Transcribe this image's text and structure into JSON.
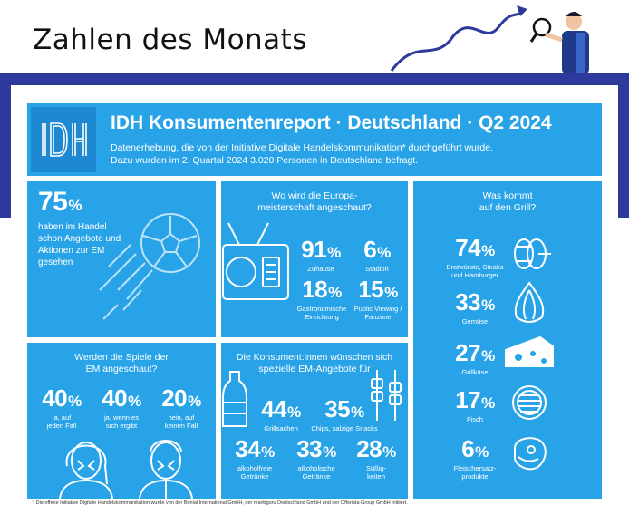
{
  "page_title": "Zahlen des Monats",
  "header": {
    "logo_text": "IDH",
    "title": "IDH Konsumentenreport · Deutschland · Q2 2024",
    "subtitle_line1": "Datenerhebung, die von der Initiative Digitale Handelskommunikation* durchgeführt wurde.",
    "subtitle_line2": "Dazu wurden im 2. Quartal 2024 3.020 Personen in Deutschland befragt."
  },
  "card_offers": {
    "value": "75",
    "pct": "%",
    "text": "haben im Handel schon Angebote und Aktionen zur EM gesehen"
  },
  "card_where": {
    "title": "Wo wird die Europa-meisterschaft angeschaut?",
    "title_line1": "Wo wird die Europa-",
    "title_line2": "meisterschaft angeschaut?",
    "stats": [
      {
        "value": "91",
        "pct": "%",
        "label": "Zuhause"
      },
      {
        "value": "6",
        "pct": "%",
        "label": "Stadion"
      },
      {
        "value": "18",
        "pct": "%",
        "label_line1": "Gastronomische",
        "label_line2": "Einrichtung"
      },
      {
        "value": "15",
        "pct": "%",
        "label_line1": "Public Viewing /",
        "label_line2": "Fanzone"
      }
    ]
  },
  "card_grill": {
    "title_line1": "Was kommt",
    "title_line2": "auf den Grill?",
    "stats": [
      {
        "value": "74",
        "pct": "%",
        "label_line1": "Bratwürste, Steaks",
        "label_line2": "und Hamburger",
        "icon": "sausage-icon"
      },
      {
        "value": "33",
        "pct": "%",
        "label_line1": "Gemüse",
        "label_line2": "",
        "icon": "onion-icon"
      },
      {
        "value": "27",
        "pct": "%",
        "label_line1": "Grillkäse",
        "label_line2": "",
        "icon": "cheese-icon"
      },
      {
        "value": "17",
        "pct": "%",
        "label_line1": "Fisch",
        "label_line2": "",
        "icon": "fish-grill-icon"
      },
      {
        "value": "6",
        "pct": "%",
        "label_line1": "Fleischersatz-",
        "label_line2": "produkte",
        "icon": "steak-icon"
      }
    ]
  },
  "card_watch": {
    "title_line1": "Werden die Spiele der",
    "title_line2": "EM angeschaut?",
    "stats": [
      {
        "value": "40",
        "pct": "%",
        "label_line1": "ja, auf",
        "label_line2": "jeden Fall"
      },
      {
        "value": "40",
        "pct": "%",
        "label_line1": "ja, wenn es",
        "label_line2": "sich ergibt"
      },
      {
        "value": "20",
        "pct": "%",
        "label_line1": "nein, auf",
        "label_line2": "keinen Fall"
      }
    ]
  },
  "card_wishes": {
    "title_line1": "Die Konsument:innen wünschen sich",
    "title_line2": "spezielle EM-Angebote für",
    "stats": [
      {
        "value": "44",
        "pct": "%",
        "label_line1": "Grillsachen",
        "label_line2": ""
      },
      {
        "value": "35",
        "pct": "%",
        "label_line1": "Chips, salzige Snacks",
        "label_line2": ""
      },
      {
        "value": "34",
        "pct": "%",
        "label_line1": "alkoholfreie",
        "label_line2": "Getränke"
      },
      {
        "value": "33",
        "pct": "%",
        "label_line1": "alkoholische",
        "label_line2": "Getränke"
      },
      {
        "value": "28",
        "pct": "%",
        "label_line1": "Süßig-",
        "label_line2": "keiten"
      }
    ]
  },
  "footnote": "* Die offene Initiative Digitale Handelskommunikation wurde von der Bonial International GmbH, der marktguru Deutschland GmbH und der Offerista Group GmbH initiiert.",
  "colors": {
    "card_blue": "#29a3e8",
    "frame_navy": "#2d3a9c",
    "icon_line": "#ffffff"
  }
}
